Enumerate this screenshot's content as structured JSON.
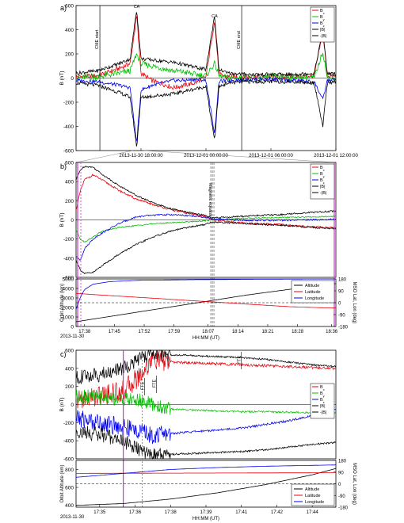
{
  "figure": {
    "panel_a": {
      "label": "a)",
      "ylabel": "B (nT)",
      "yticks": [
        "600",
        "400",
        "200",
        "0",
        "-200",
        "-400",
        "-600"
      ],
      "xticks": [
        "2013-11-30 18:00:00",
        "2013-12-01 00:00:00",
        "2013-12-01 06:00:00",
        "2013-12-01 12:00:00"
      ],
      "events": [
        "CME start",
        "CME end"
      ],
      "ca_labels": [
        "CA",
        "CA",
        "CA"
      ],
      "legend": [
        "B",
        "B",
        "B",
        "|B|",
        "-|B|"
      ],
      "legend_subs": [
        "x",
        "y",
        "z",
        "",
        ""
      ]
    },
    "panel_b": {
      "label": "b)",
      "ylabel": "B (nT)",
      "yticks": [
        "600",
        "400",
        "200",
        "0",
        "-200",
        "-400",
        "-600"
      ],
      "annotation": "Magnetic equator",
      "legend": [
        "B",
        "B",
        "B",
        "|B|",
        "-|B|"
      ],
      "legend_subs": [
        "x",
        "y",
        "z",
        "",
        ""
      ],
      "orbit": {
        "ylabel_left": "Orbit Altitude (km)",
        "ylabel_right": "MSO Lat, Lon (deg)",
        "yticks_left": [
          "5000",
          "4000",
          "3000",
          "2000",
          "1000",
          "0"
        ],
        "yticks_right": [
          "180",
          "90",
          "0",
          "-90",
          "-180"
        ],
        "xticks": [
          "17:38",
          "17:45",
          "17:52",
          "17:59",
          "18:07",
          "18:14",
          "18:21",
          "18:28",
          "18:36"
        ],
        "date": "2013-11-30",
        "xlabel": "HH:MM (UT)",
        "legend": [
          "Altitude",
          "Latitude",
          "Longitude"
        ]
      }
    },
    "panel_c": {
      "label": "c)",
      "ylabel": "B (nT)",
      "yticks": [
        "600",
        "400",
        "200",
        "0",
        "-200",
        "-400",
        "-600"
      ],
      "fte_labels": [
        "FTE",
        "FTE",
        "FTE"
      ],
      "legend": [
        "B",
        "B",
        "B",
        "|B|",
        "-|B|"
      ],
      "legend_subs": [
        "x",
        "y",
        "z",
        "",
        ""
      ],
      "orbit": {
        "ylabel_left": "Orbit Altitude (km)",
        "ylabel_right": "MSO Lat, Lon (deg)",
        "yticks_left": [
          "800",
          "600",
          "400"
        ],
        "yticks_right": [
          "180",
          "90",
          "0",
          "-90",
          "-180"
        ],
        "xticks": [
          "17:35",
          "17:36",
          "17:38",
          "17:39",
          "17:41",
          "17:42",
          "17:44"
        ],
        "date": "2013-11-30",
        "xlabel": "HH:MM (UT)",
        "legend": [
          "Altitude",
          "Latitude",
          "Longitude"
        ]
      }
    }
  },
  "colors": {
    "bx": "#e8000b",
    "by": "#00c000",
    "bz": "#0000ee",
    "btot": "#000000",
    "altitude": "#000000",
    "latitude": "#e8000b",
    "longitude": "#0000ee",
    "event_line": "#cc33cc",
    "axis": "#000000"
  },
  "chart_data": [
    {
      "type": "line",
      "panel": "a",
      "title": "",
      "xlabel": "",
      "ylabel": "B (nT)",
      "ylim": [
        -600,
        600
      ],
      "x_unit": "hours since 2013-11-30 12:00 UT",
      "xlim": [
        0,
        24
      ],
      "ca_times": [
        5.6,
        12.8,
        22.8
      ],
      "event_times": {
        "CME start": 2.2,
        "CME end": 15.3
      },
      "series": [
        {
          "name": "Bx",
          "x": [
            0,
            2,
            4,
            5,
            5.6,
            6,
            7,
            8,
            9,
            10,
            11,
            12,
            12.8,
            13.2,
            14,
            16,
            18,
            20,
            22,
            22.8,
            23.2,
            24
          ],
          "values": [
            10,
            20,
            80,
            120,
            520,
            40,
            -20,
            -50,
            -80,
            -60,
            -40,
            10,
            480,
            30,
            10,
            10,
            10,
            10,
            20,
            380,
            20,
            10
          ]
        },
        {
          "name": "By",
          "x": [
            0,
            2,
            4,
            5,
            5.6,
            6,
            7,
            8,
            9,
            10,
            11,
            12,
            12.8,
            13.2,
            14,
            16,
            18,
            20,
            22,
            22.8,
            23.2,
            24
          ],
          "values": [
            0,
            10,
            40,
            60,
            200,
            120,
            100,
            80,
            60,
            50,
            30,
            20,
            120,
            20,
            0,
            0,
            10,
            10,
            0,
            220,
            0,
            0
          ]
        },
        {
          "name": "Bz",
          "x": [
            0,
            2,
            4,
            5,
            5.6,
            6,
            7,
            8,
            9,
            10,
            11,
            12,
            12.8,
            13.2,
            14,
            16,
            18,
            20,
            22,
            22.8,
            23.2,
            24
          ],
          "values": [
            -20,
            -30,
            -60,
            -80,
            -540,
            -100,
            -60,
            -40,
            -20,
            -20,
            -10,
            -20,
            -460,
            -30,
            -20,
            -10,
            -10,
            -20,
            -30,
            -180,
            -20,
            -10
          ]
        },
        {
          "name": "|B|",
          "x": [
            0,
            2,
            4,
            5,
            5.6,
            6,
            7,
            8,
            9,
            10,
            11,
            12,
            12.8,
            13.2,
            14,
            16,
            18,
            20,
            22,
            22.8,
            23.2,
            24
          ],
          "values": [
            40,
            60,
            120,
            160,
            570,
            160,
            150,
            140,
            130,
            110,
            90,
            70,
            520,
            70,
            40,
            30,
            30,
            30,
            40,
            400,
            40,
            30
          ]
        },
        {
          "name": "-|B|",
          "x": [
            0,
            2,
            4,
            5,
            5.6,
            6,
            7,
            8,
            9,
            10,
            11,
            12,
            12.8,
            13.2,
            14,
            16,
            18,
            20,
            22,
            22.8,
            23.2,
            24
          ],
          "values": [
            -40,
            -60,
            -120,
            -160,
            -570,
            -160,
            -150,
            -140,
            -130,
            -110,
            -90,
            -70,
            -520,
            -70,
            -40,
            -30,
            -30,
            -30,
            -40,
            -400,
            -40,
            -30
          ]
        }
      ]
    },
    {
      "type": "line",
      "panel": "b",
      "ylabel": "B (nT)",
      "ylim": [
        -600,
        600
      ],
      "x_unit": "minutes after 17:36 UT",
      "xlim": [
        0,
        61
      ],
      "event_times": {
        "magnetic_equator": 32
      },
      "series": [
        {
          "name": "Bx",
          "x": [
            0,
            1,
            2,
            4,
            6,
            10,
            14,
            18,
            22,
            26,
            30,
            32,
            36,
            42,
            48,
            54,
            60
          ],
          "values": [
            100,
            300,
            420,
            470,
            420,
            310,
            220,
            160,
            110,
            70,
            40,
            0,
            -20,
            -40,
            -50,
            -70,
            -80
          ]
        },
        {
          "name": "By",
          "x": [
            0,
            1,
            2,
            4,
            6,
            10,
            14,
            18,
            22,
            26,
            30,
            32,
            36,
            42,
            48,
            54,
            60
          ],
          "values": [
            -100,
            -200,
            -230,
            -180,
            -120,
            -80,
            -60,
            -40,
            -30,
            -20,
            -10,
            0,
            10,
            20,
            25,
            30,
            35
          ]
        },
        {
          "name": "Bz",
          "x": [
            0,
            1,
            2,
            4,
            6,
            10,
            14,
            18,
            22,
            26,
            30,
            32,
            36,
            42,
            48,
            54,
            60
          ],
          "values": [
            -380,
            -420,
            -300,
            -200,
            -140,
            -40,
            30,
            50,
            55,
            45,
            30,
            10,
            0,
            -5,
            -5,
            0,
            5
          ]
        },
        {
          "name": "|B|",
          "x": [
            0,
            1,
            2,
            4,
            6,
            10,
            14,
            18,
            22,
            26,
            30,
            32,
            36,
            42,
            48,
            54,
            60
          ],
          "values": [
            420,
            520,
            560,
            550,
            480,
            360,
            260,
            180,
            120,
            80,
            50,
            20,
            30,
            45,
            55,
            75,
            90
          ]
        },
        {
          "name": "-|B|",
          "x": [
            0,
            1,
            2,
            4,
            6,
            10,
            14,
            18,
            22,
            26,
            30,
            32,
            36,
            42,
            48,
            54,
            60
          ],
          "values": [
            -420,
            -520,
            -560,
            -550,
            -480,
            -360,
            -260,
            -180,
            -120,
            -80,
            -50,
            -20,
            -30,
            -45,
            -55,
            -75,
            -90
          ]
        }
      ],
      "orbit": {
        "ylim_left": [
          0,
          5000
        ],
        "ylim_right": [
          -180,
          180
        ],
        "series": [
          {
            "name": "Altitude",
            "axis": "left",
            "x": [
              0,
              10,
              20,
              30,
              40,
              50,
              60
            ],
            "values": [
              500,
              1200,
              1900,
              2600,
              3300,
              3900,
              4500
            ]
          },
          {
            "name": "Latitude",
            "axis": "right",
            "x": [
              0,
              10,
              20,
              30,
              40,
              50,
              60
            ],
            "values": [
              70,
              50,
              30,
              10,
              -10,
              -30,
              -40
            ]
          },
          {
            "name": "Longitude",
            "axis": "right",
            "x": [
              0,
              1,
              2,
              4,
              8,
              15,
              30,
              45,
              60
            ],
            "values": [
              -50,
              40,
              100,
              140,
              160,
              170,
              175,
              178,
              180
            ]
          }
        ]
      }
    },
    {
      "type": "line",
      "panel": "c",
      "ylabel": "B (nT)",
      "ylim": [
        -600,
        600
      ],
      "x_unit": "minutes after 17:34 UT",
      "xlim": [
        0,
        11
      ],
      "fte_times": [
        2.9,
        3.4,
        7.0
      ],
      "event_times": {
        "magenta_solid": 2.0,
        "magenta_dashed": 2.8
      },
      "series": [
        {
          "name": "Bx",
          "x": [
            0,
            1,
            2,
            2.8,
            3.2,
            3.6,
            4,
            5,
            6,
            7,
            8,
            9,
            10,
            11
          ],
          "values": [
            50,
            100,
            150,
            350,
            500,
            480,
            470,
            460,
            450,
            440,
            430,
            420,
            410,
            400
          ]
        },
        {
          "name": "By",
          "x": [
            0,
            1,
            2,
            2.8,
            3.2,
            3.6,
            4,
            5,
            6,
            7,
            8,
            9,
            10,
            11
          ],
          "values": [
            100,
            80,
            60,
            40,
            0,
            -30,
            -50,
            -60,
            -70,
            -80,
            -80,
            -85,
            -90,
            -90
          ]
        },
        {
          "name": "Bz",
          "x": [
            0,
            1,
            2,
            2.8,
            3.2,
            3.6,
            4,
            5,
            6,
            7,
            8,
            9,
            10,
            11
          ],
          "values": [
            -150,
            -200,
            -250,
            -300,
            -340,
            -330,
            -320,
            -300,
            -280,
            -260,
            -220,
            -180,
            -120,
            -60
          ]
        },
        {
          "name": "|B|",
          "x": [
            0,
            1,
            2,
            2.8,
            3.2,
            3.6,
            4,
            5,
            6,
            7,
            8,
            9,
            10,
            11
          ],
          "values": [
            300,
            330,
            400,
            520,
            560,
            560,
            550,
            540,
            530,
            520,
            500,
            470,
            440,
            420
          ]
        },
        {
          "name": "-|B|",
          "x": [
            0,
            1,
            2,
            2.8,
            3.2,
            3.6,
            4,
            5,
            6,
            7,
            8,
            9,
            10,
            11
          ],
          "values": [
            -300,
            -330,
            -400,
            -520,
            -560,
            -560,
            -550,
            -540,
            -530,
            -520,
            -500,
            -470,
            -440,
            -420
          ]
        }
      ],
      "orbit": {
        "ylim_left": [
          380,
          900
        ],
        "ylim_right": [
          -180,
          180
        ],
        "series": [
          {
            "name": "Altitude",
            "axis": "left",
            "x": [
              0,
              2,
              4,
              6,
              8,
              10,
              11
            ],
            "values": [
              400,
              420,
              470,
              540,
              630,
              740,
              810
            ]
          },
          {
            "name": "Latitude",
            "axis": "right",
            "x": [
              0,
              11
            ],
            "values": [
              80,
              85
            ]
          },
          {
            "name": "Longitude",
            "axis": "right",
            "x": [
              0,
              2,
              4,
              6,
              8,
              11
            ],
            "values": [
              50,
              80,
              110,
              125,
              135,
              145
            ]
          }
        ]
      }
    }
  ]
}
